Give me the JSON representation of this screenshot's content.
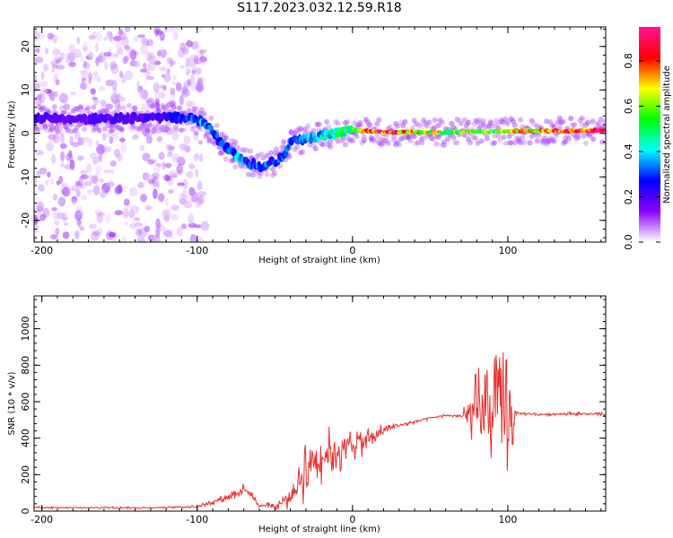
{
  "title": "S117.2023.032.12.59.R18",
  "chart_data": [
    {
      "type": "heatmap",
      "title": "S117.2023.032.12.59.R18",
      "xlabel": "Height of straight line (km)",
      "ylabel": "Frequency (Hz)",
      "xlim": [
        -205,
        163
      ],
      "ylim": [
        -25,
        24.5
      ],
      "xticks": [
        -200,
        -100,
        0,
        100
      ],
      "yticks": [
        -20,
        -10,
        0,
        10,
        20
      ],
      "grid": false,
      "colormap": [
        "#ffffff",
        "#8b00ff",
        "#0000ff",
        "#00ffff",
        "#00ff00",
        "#ffff00",
        "#ff0000",
        "#ff1493"
      ],
      "colorbar": {
        "label": "Normalized spectral amplitude",
        "range": [
          0,
          0.95
        ],
        "ticks": [
          "0.0",
          "0.2",
          "0.4",
          "0.6",
          "0.8"
        ]
      },
      "ridge": {
        "x": [
          -200,
          -180,
          -160,
          -140,
          -120,
          -105,
          -95,
          -85,
          -75,
          -65,
          -58,
          -50,
          -45,
          -40,
          -30,
          -20,
          -10,
          0,
          10,
          20,
          40,
          60,
          80,
          95,
          100,
          120,
          140,
          163
        ],
        "frequency": [
          3.5,
          3.2,
          3.4,
          3.6,
          3.8,
          3.5,
          2.5,
          -2,
          -5,
          -7,
          -7.5,
          -6.5,
          -5.5,
          -2,
          -1.2,
          -0.5,
          0,
          0.8,
          0.5,
          0.2,
          0.3,
          0.2,
          0.4,
          0.5,
          0.6,
          0.5,
          0.6,
          0.7
        ],
        "amplitude": [
          0.2,
          0.18,
          0.2,
          0.2,
          0.22,
          0.3,
          0.35,
          0.3,
          0.35,
          0.3,
          0.32,
          0.3,
          0.3,
          0.3,
          0.35,
          0.4,
          0.45,
          0.5,
          0.8,
          0.85,
          0.7,
          0.6,
          0.6,
          0.55,
          0.65,
          0.7,
          0.85,
          0.9
        ]
      }
    },
    {
      "type": "line",
      "xlabel": "Height of straight line (km)",
      "ylabel": "SNR (10 * v/v)",
      "xlim": [
        -205,
        163
      ],
      "ylim": [
        0,
        1180
      ],
      "xticks": [
        -200,
        -100,
        0,
        100
      ],
      "yticks": [
        0,
        200,
        400,
        600,
        800,
        1000
      ],
      "grid": false,
      "color": "#e8302e",
      "series": [
        {
          "x": [
            -205,
            -180,
            -160,
            -140,
            -120,
            -100,
            -90,
            -80,
            -70,
            -65,
            -60,
            -55,
            -50,
            -45,
            -40,
            -35,
            -30,
            -25,
            -20,
            -15,
            -10,
            -5,
            0,
            5,
            10,
            15,
            20,
            25,
            30,
            35,
            40,
            50,
            60,
            70,
            80,
            85,
            90,
            95,
            100,
            103,
            105,
            110,
            120,
            140,
            163
          ],
          "y": [
            20,
            18,
            20,
            18,
            20,
            25,
            50,
            80,
            120,
            90,
            25,
            40,
            20,
            50,
            80,
            150,
            240,
            290,
            300,
            320,
            330,
            350,
            370,
            380,
            390,
            420,
            440,
            460,
            470,
            480,
            490,
            510,
            525,
            520,
            530,
            550,
            560,
            570,
            560,
            540,
            535,
            535,
            530,
            535,
            530
          ],
          "spread": [
            6,
            6,
            6,
            6,
            6,
            8,
            15,
            25,
            35,
            30,
            10,
            20,
            15,
            40,
            80,
            140,
            200,
            180,
            160,
            150,
            140,
            130,
            110,
            90,
            80,
            60,
            40,
            20,
            15,
            15,
            12,
            10,
            10,
            10,
            250,
            350,
            300,
            300,
            450,
            500,
            15,
            10,
            10,
            10,
            10
          ]
        }
      ]
    }
  ]
}
